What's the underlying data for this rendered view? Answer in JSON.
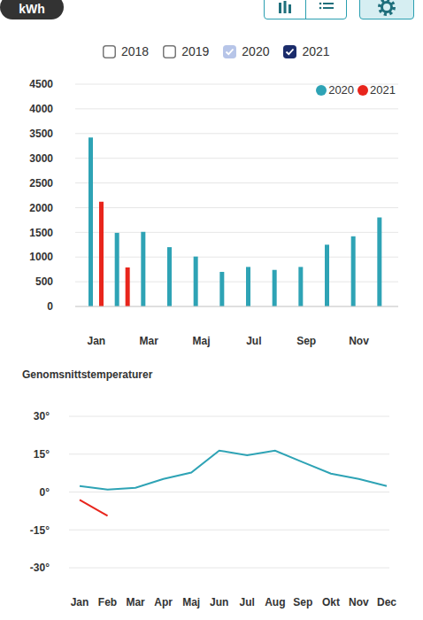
{
  "header": {
    "filters": [
      {
        "label": "2018",
        "checked": false
      },
      {
        "label": "2019",
        "checked": false
      },
      {
        "label": "2020",
        "checked": true
      },
      {
        "label": "2021",
        "checked": true
      }
    ]
  },
  "chart_data": [
    {
      "type": "bar",
      "y_label": "kWh",
      "categories": [
        "Jan",
        null,
        "Mar",
        null,
        "Maj",
        null,
        "Jul",
        null,
        "Sep",
        null,
        "Nov",
        null
      ],
      "series": [
        {
          "name": "2020",
          "color": "#2ea3b5",
          "values": [
            3420,
            1490,
            1510,
            1200,
            1010,
            700,
            800,
            740,
            800,
            1250,
            1420,
            1800
          ]
        },
        {
          "name": "2021",
          "color": "#e8251c",
          "values": [
            2120,
            790,
            null,
            null,
            null,
            null,
            null,
            null,
            null,
            null,
            null,
            null
          ]
        }
      ],
      "ylim": [
        0,
        4500
      ],
      "yticks": [
        0,
        500,
        1000,
        1500,
        2000,
        2500,
        3000,
        3500,
        4000,
        4500
      ],
      "grid": true,
      "legend": "upper right"
    },
    {
      "type": "line",
      "title": "Genomsnittstemperaturer",
      "categories": [
        "Jan",
        "Feb",
        "Mar",
        "Apr",
        "Maj",
        "Jun",
        "Jul",
        "Aug",
        "Sep",
        "Okt",
        "Nov",
        "Dec"
      ],
      "series": [
        {
          "color": "#2ea3b5",
          "values": [
            2.4,
            1,
            1.7,
            5.2,
            7.7,
            16.4,
            14.6,
            16.4,
            11.8,
            7.3,
            5.2,
            2.4
          ]
        },
        {
          "color": "#e8251c",
          "values": [
            -3.1,
            -9.4,
            null,
            null,
            null,
            null,
            null,
            null,
            null,
            null,
            null,
            null
          ]
        }
      ],
      "ylim": [
        -30,
        30
      ],
      "yticks": [
        {
          "value": -30,
          "label": "-30°"
        },
        {
          "value": -15,
          "label": "-15°"
        },
        {
          "value": 0,
          "label": "0°"
        },
        {
          "value": 15,
          "label": "15°"
        },
        {
          "value": 30,
          "label": "30°"
        }
      ],
      "grid": true
    }
  ]
}
